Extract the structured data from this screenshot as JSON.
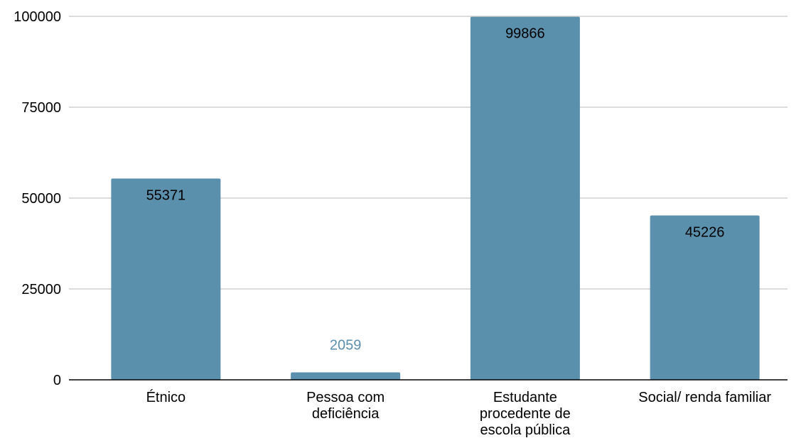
{
  "chart_data": {
    "type": "bar",
    "title": "",
    "xlabel": "",
    "ylabel": "",
    "categories": [
      "Étnico",
      "Pessoa com deficiência",
      "Estudante procedente de escola pública",
      "Social/ renda familiar"
    ],
    "category_label_lines": [
      [
        "Étnico"
      ],
      [
        "Pessoa com",
        "deficiência"
      ],
      [
        "Estudante",
        "procedente de",
        "escola pública"
      ],
      [
        "Social/ renda familiar"
      ]
    ],
    "values": [
      55371,
      2059,
      99866,
      45226
    ],
    "data_labels": [
      "55371",
      "2059",
      "99866",
      "45226"
    ],
    "ylim": [
      0,
      100000
    ],
    "yticks": [
      0,
      25000,
      50000,
      75000,
      100000
    ],
    "grid": true,
    "legend": "none",
    "colors": {
      "bar": "#5a90ac",
      "label_inside": "#000000",
      "label_outside": "#5a90ac",
      "grid": "#c8c8c8",
      "axis": "#000000",
      "tick_text": "#000000"
    }
  }
}
